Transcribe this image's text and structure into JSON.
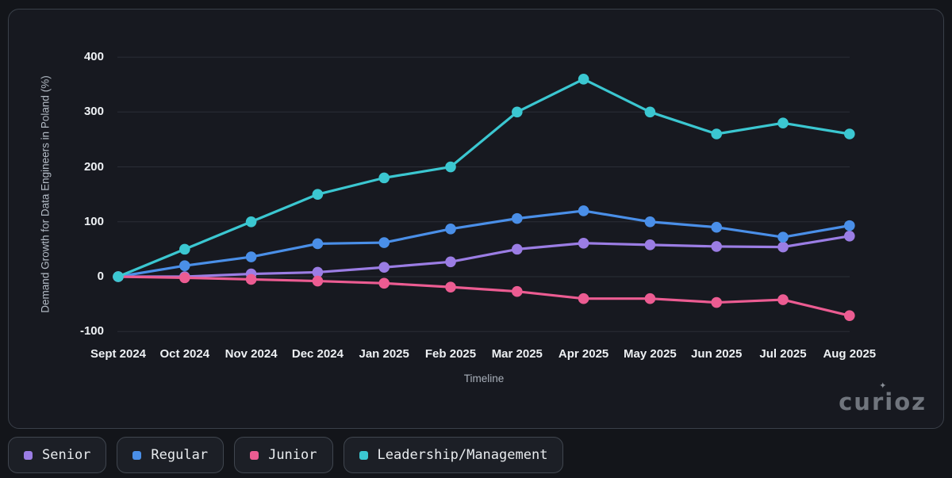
{
  "chart_data": {
    "type": "line",
    "title": "",
    "xlabel": "Timeline",
    "ylabel": "Demand Growth for Data Engineers in Poland (%)",
    "categories": [
      "Sept 2024",
      "Oct 2024",
      "Nov 2024",
      "Dec 2024",
      "Jan 2025",
      "Feb 2025",
      "Mar 2025",
      "Apr 2025",
      "May 2025",
      "Jun 2025",
      "Jul 2025",
      "Aug 2025"
    ],
    "y_ticks": [
      400,
      300,
      200,
      100,
      0,
      -100
    ],
    "ylim": [
      -100,
      430
    ],
    "grid": true,
    "legend_position": "bottom-left",
    "series": [
      {
        "name": "Senior",
        "color": "#9b7de4",
        "values": [
          0,
          0,
          5,
          8,
          17,
          27,
          50,
          61,
          58,
          55,
          54,
          74
        ]
      },
      {
        "name": "Regular",
        "color": "#4a8fe8",
        "values": [
          0,
          20,
          36,
          60,
          62,
          87,
          106,
          120,
          100,
          90,
          72,
          93
        ]
      },
      {
        "name": "Junior",
        "color": "#ec5c92",
        "values": [
          0,
          -2,
          -5,
          -8,
          -12,
          -19,
          -27,
          -40,
          -40,
          -47,
          -42,
          -71
        ]
      },
      {
        "name": "Leadership/Management",
        "color": "#3bc7d1",
        "values": [
          0,
          50,
          100,
          150,
          180,
          200,
          300,
          360,
          300,
          260,
          280,
          260
        ]
      }
    ]
  },
  "branding": {
    "logo_text": "curioz",
    "sparkle_icon": "✦"
  },
  "colors": {
    "background": "#13151a",
    "panel": "#171920",
    "panel_border": "#3a4049",
    "grid": "#2a2e36",
    "tick_text": "#eef1f4",
    "axis_label": "#a9b0ba",
    "legend_text": "#e9ecef",
    "logo": "#70757d"
  }
}
